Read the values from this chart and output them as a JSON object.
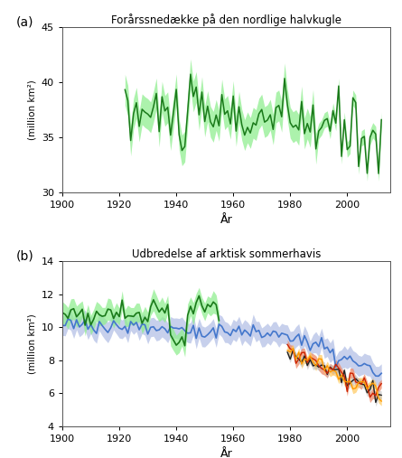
{
  "title_a": "Forårssnedække på den nordlige halvkugle",
  "title_b": "Udbredelse af arktisk sommerhavis",
  "xlabel": "År",
  "ylabel": "(million km²)",
  "panel_a_label": "(a)",
  "panel_b_label": "(b)",
  "panel_a_ylim": [
    30,
    45
  ],
  "panel_b_ylim": [
    4,
    14
  ],
  "xlim": [
    1900,
    2015
  ],
  "panel_a_yticks": [
    30,
    35,
    40,
    45
  ],
  "panel_b_yticks": [
    4,
    6,
    8,
    10,
    12,
    14
  ],
  "xticks": [
    1900,
    1920,
    1940,
    1960,
    1980,
    2000
  ],
  "green_line_color": "#1a7a1a",
  "green_shade_color": "#90EE90",
  "blue_line_color": "#4477CC",
  "blue_shade_color": "#99AADD",
  "red_line_color": "#CC2200",
  "red_shade_color": "#EE8866",
  "orange_line_color": "#FF9900",
  "orange_shade_color": "#FFCC66",
  "black_line_color": "#222222",
  "black_shade_color": "#BBBBBB"
}
